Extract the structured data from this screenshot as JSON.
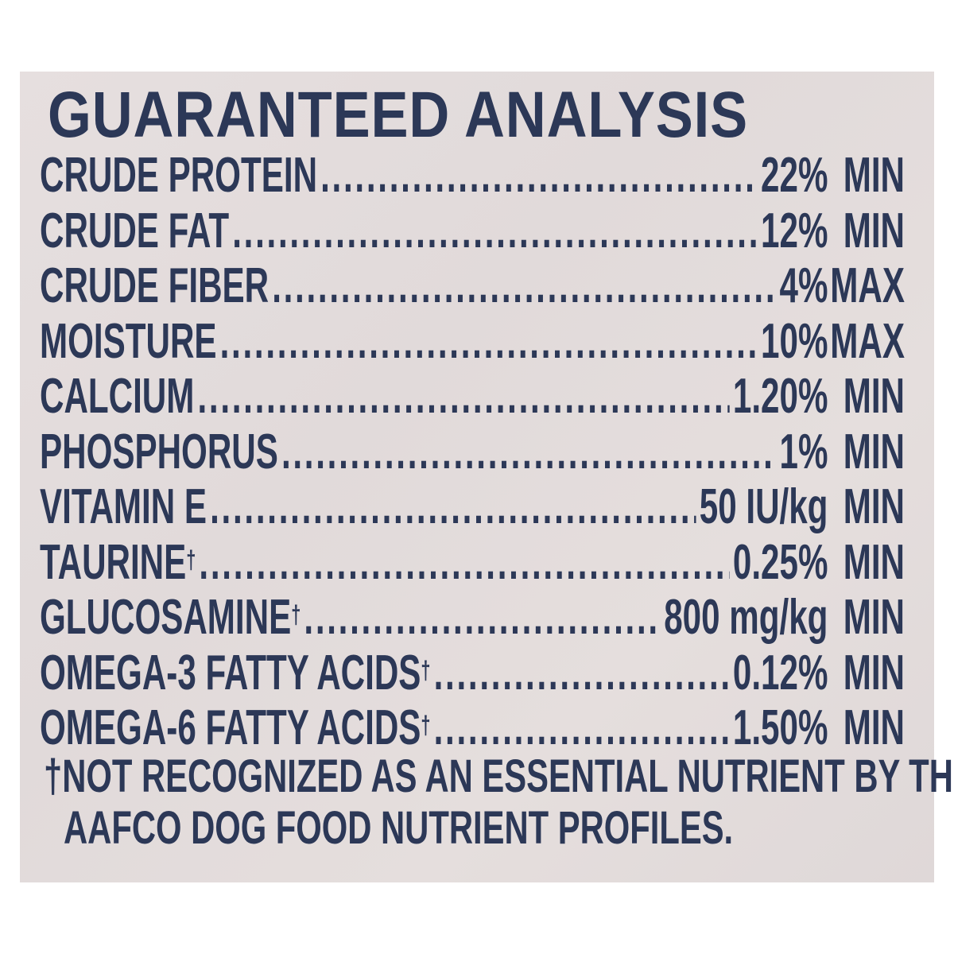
{
  "title": "GUARANTEED ANALYSIS",
  "colors": {
    "ink": "#2c3857",
    "background": "#e3dcdc"
  },
  "rows": [
    {
      "label": "CRUDE PROTEIN",
      "sup": "",
      "value": "22%",
      "unit": "MIN"
    },
    {
      "label": "CRUDE FAT",
      "sup": "",
      "value": "12%",
      "unit": "MIN"
    },
    {
      "label": "CRUDE FIBER",
      "sup": "",
      "value": "4%",
      "unit": "MAX"
    },
    {
      "label": "MOISTURE",
      "sup": "",
      "value": "10%",
      "unit": "MAX"
    },
    {
      "label": "CALCIUM",
      "sup": "",
      "value": "1.20%",
      "unit": "MIN"
    },
    {
      "label": "PHOSPHORUS",
      "sup": "",
      "value": "1%",
      "unit": "MIN"
    },
    {
      "label": "VITAMIN E",
      "sup": "",
      "value": "50 IU/kg",
      "unit": "MIN"
    },
    {
      "label": "TAURINE",
      "sup": "†",
      "value": "0.25%",
      "unit": "MIN"
    },
    {
      "label": "GLUCOSAMINE",
      "sup": "†",
      "value": "800 mg/kg",
      "unit": "MIN"
    },
    {
      "label": "OMEGA-3 FATTY ACIDS",
      "sup": "†",
      "value": "0.12%",
      "unit": "MIN"
    },
    {
      "label": "OMEGA-6 FATTY ACIDS",
      "sup": "†",
      "value": "1.50%",
      "unit": "MIN"
    }
  ],
  "footnote": {
    "line1": "†NOT RECOGNIZED AS AN ESSENTIAL NUTRIENT BY THE",
    "line2": "AAFCO DOG FOOD NUTRIENT PROFILES."
  }
}
